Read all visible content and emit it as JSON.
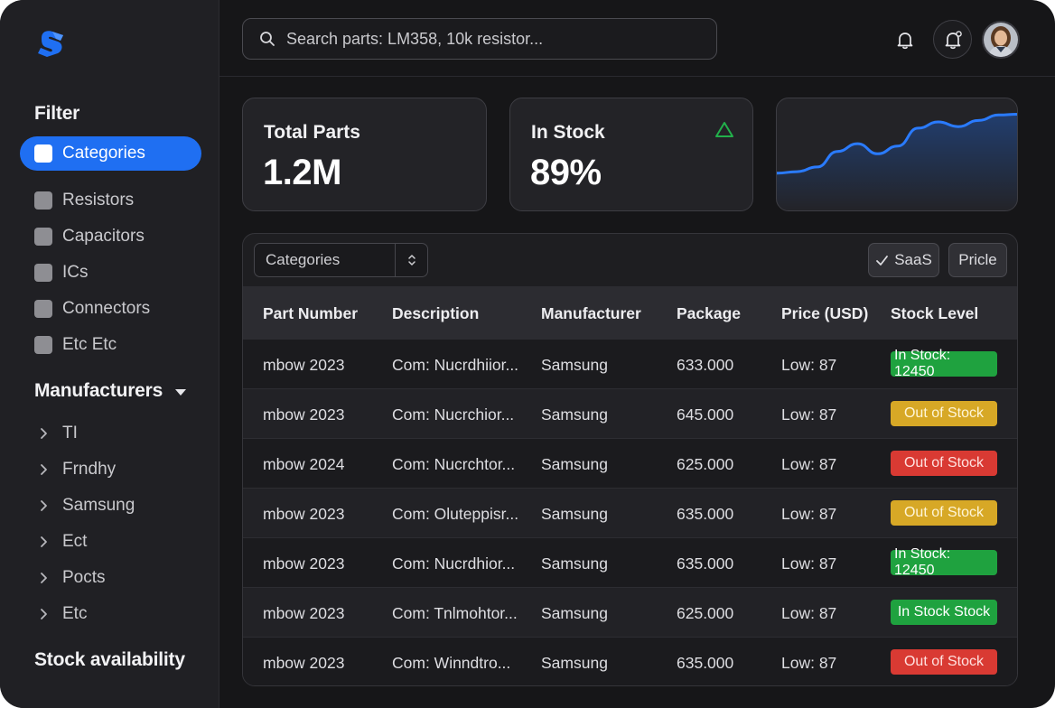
{
  "sidebar": {
    "filter_heading": "Filter",
    "categories": [
      {
        "label": "Categories",
        "active": true
      },
      {
        "label": "Resistors",
        "active": false
      },
      {
        "label": "Capacitors",
        "active": false
      },
      {
        "label": "ICs",
        "active": false
      },
      {
        "label": "Connectors",
        "active": false
      },
      {
        "label": "Etc Etc",
        "active": false
      }
    ],
    "manufacturers_heading": "Manufacturers",
    "manufacturers": [
      {
        "label": "TI"
      },
      {
        "label": "Frndhy"
      },
      {
        "label": "Samsung"
      },
      {
        "label": "Ect"
      },
      {
        "label": "Pocts"
      },
      {
        "label": "Etc"
      }
    ],
    "stock_heading": "Stock availability"
  },
  "header": {
    "search_placeholder": "Search parts: LM358, 10k resistor..."
  },
  "stats": {
    "total_parts": {
      "label": "Total Parts",
      "value": "1.2M"
    },
    "in_stock": {
      "label": "In Stock",
      "value": "89%"
    }
  },
  "sparkline": {
    "values": [
      20,
      22,
      28,
      48,
      58,
      45,
      55,
      78,
      86,
      80,
      88,
      95,
      96
    ]
  },
  "colors": {
    "accent": "#1f6ff2",
    "stock_green": "#1fa23f",
    "stock_yellow": "#d7a826",
    "stock_red": "#d93a33"
  },
  "table": {
    "select_label": "Categories",
    "chips": {
      "saas": "SaaS",
      "price": "Pricle"
    },
    "columns": [
      "Part Number",
      "Description",
      "Manufacturer",
      "Package",
      "Price (USD)",
      "Stock Level"
    ],
    "rows": [
      {
        "part": "mbow 2023",
        "desc": "Com: Nucrdhiior...",
        "mfr": "Samsung",
        "pkg": "633.000",
        "price": "Low: 87",
        "stock": "In Stock: 12450",
        "status": "green"
      },
      {
        "part": "mbow 2023",
        "desc": "Com: Nucrchior...",
        "mfr": "Samsung",
        "pkg": "645.000",
        "price": "Low: 87",
        "stock": "Out of Stock",
        "status": "yellow"
      },
      {
        "part": "mbow 2024",
        "desc": "Com: Nucrchtor...",
        "mfr": "Samsung",
        "pkg": "625.000",
        "price": "Low: 87",
        "stock": "Out of Stock",
        "status": "red"
      },
      {
        "part": "mbow 2023",
        "desc": "Com: Oluteppisr...",
        "mfr": "Samsung",
        "pkg": "635.000",
        "price": "Low: 87",
        "stock": "Out of Stock",
        "status": "yellow"
      },
      {
        "part": "mbow 2023",
        "desc": "Com: Nucrdhior...",
        "mfr": "Samsung",
        "pkg": "635.000",
        "price": "Low: 87",
        "stock": "In Stock: 12450",
        "status": "green"
      },
      {
        "part": "mbow 2023",
        "desc": "Com: Tnlmohtor...",
        "mfr": "Samsung",
        "pkg": "625.000",
        "price": "Low: 87",
        "stock": "In Stock Stock",
        "status": "green"
      },
      {
        "part": "mbow 2023",
        "desc": "Com: Winndtro...",
        "mfr": "Samsung",
        "pkg": "635.000",
        "price": "Low: 87",
        "stock": "Out of Stock",
        "status": "red"
      }
    ]
  }
}
